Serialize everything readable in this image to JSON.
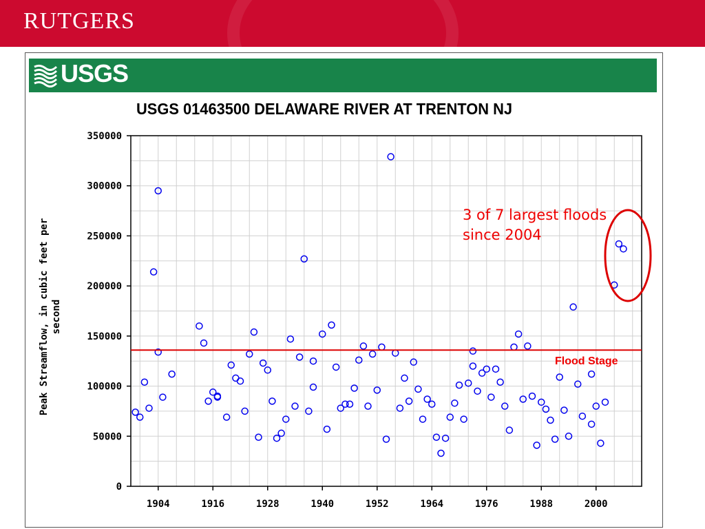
{
  "header": {
    "org_name": "RUTGERS",
    "banner_color": "#cc0a2f"
  },
  "usgs_bar": {
    "logo_text": "USGS",
    "bar_color": "#18844a"
  },
  "chart_data": {
    "type": "scatter",
    "title": "USGS 01463500 DELAWARE RIVER AT TRENTON NJ",
    "xlabel": "",
    "ylabel": "Peak Streamflow, in cubic feet per second",
    "xlim": [
      1898,
      2010
    ],
    "ylim": [
      0,
      350000
    ],
    "x_ticks": [
      1904,
      1916,
      1928,
      1940,
      1952,
      1964,
      1976,
      1988,
      2000
    ],
    "y_ticks": [
      0,
      50000,
      100000,
      150000,
      200000,
      250000,
      300000,
      350000
    ],
    "grid": true,
    "marker_color": "#0000ee",
    "series": [
      {
        "points": [
          [
            1899,
            74000
          ],
          [
            1900,
            69000
          ],
          [
            1901,
            104000
          ],
          [
            1902,
            78000
          ],
          [
            1903,
            214000
          ],
          [
            1904,
            134000
          ],
          [
            1904,
            295000
          ],
          [
            1905,
            89000
          ],
          [
            1907,
            112000
          ],
          [
            1913,
            160000
          ],
          [
            1914,
            143000
          ],
          [
            1915,
            85000
          ],
          [
            1916,
            94000
          ],
          [
            1917,
            90000
          ],
          [
            1917,
            89000
          ],
          [
            1919,
            69000
          ],
          [
            1920,
            121000
          ],
          [
            1921,
            108000
          ],
          [
            1922,
            105000
          ],
          [
            1923,
            75000
          ],
          [
            1924,
            132000
          ],
          [
            1925,
            154000
          ],
          [
            1926,
            49000
          ],
          [
            1927,
            123000
          ],
          [
            1928,
            116000
          ],
          [
            1929,
            85000
          ],
          [
            1930,
            48000
          ],
          [
            1931,
            53000
          ],
          [
            1932,
            67000
          ],
          [
            1933,
            147000
          ],
          [
            1934,
            80000
          ],
          [
            1935,
            129000
          ],
          [
            1936,
            227000
          ],
          [
            1937,
            75000
          ],
          [
            1938,
            125000
          ],
          [
            1938,
            99000
          ],
          [
            1940,
            152000
          ],
          [
            1941,
            57000
          ],
          [
            1942,
            161000
          ],
          [
            1943,
            119000
          ],
          [
            1944,
            78000
          ],
          [
            1945,
            82000
          ],
          [
            1946,
            82000
          ],
          [
            1947,
            98000
          ],
          [
            1948,
            126000
          ],
          [
            1949,
            140000
          ],
          [
            1950,
            80000
          ],
          [
            1951,
            132000
          ],
          [
            1952,
            96000
          ],
          [
            1953,
            139000
          ],
          [
            1954,
            47000
          ],
          [
            1955,
            329000
          ],
          [
            1956,
            133000
          ],
          [
            1957,
            78000
          ],
          [
            1958,
            108000
          ],
          [
            1959,
            85000
          ],
          [
            1960,
            124000
          ],
          [
            1961,
            97000
          ],
          [
            1962,
            67000
          ],
          [
            1963,
            87000
          ],
          [
            1964,
            82000
          ],
          [
            1965,
            49000
          ],
          [
            1966,
            33000
          ],
          [
            1967,
            48000
          ],
          [
            1968,
            69000
          ],
          [
            1969,
            83000
          ],
          [
            1970,
            101000
          ],
          [
            1971,
            67000
          ],
          [
            1972,
            103000
          ],
          [
            1973,
            135000
          ],
          [
            1973,
            120000
          ],
          [
            1974,
            95000
          ],
          [
            1975,
            113000
          ],
          [
            1976,
            117000
          ],
          [
            1977,
            89000
          ],
          [
            1978,
            117000
          ],
          [
            1979,
            104000
          ],
          [
            1980,
            80000
          ],
          [
            1981,
            56000
          ],
          [
            1982,
            139000
          ],
          [
            1983,
            152000
          ],
          [
            1984,
            87000
          ],
          [
            1985,
            140000
          ],
          [
            1986,
            90000
          ],
          [
            1987,
            41000
          ],
          [
            1988,
            84000
          ],
          [
            1989,
            77000
          ],
          [
            1990,
            66000
          ],
          [
            1991,
            47000
          ],
          [
            1992,
            109000
          ],
          [
            1993,
            76000
          ],
          [
            1994,
            50000
          ],
          [
            1995,
            179000
          ],
          [
            1996,
            102000
          ],
          [
            1997,
            70000
          ],
          [
            1999,
            112000
          ],
          [
            1999,
            62000
          ],
          [
            2000,
            80000
          ],
          [
            2001,
            43000
          ],
          [
            2002,
            84000
          ],
          [
            2004,
            201000
          ],
          [
            2005,
            242000
          ],
          [
            2006,
            237000
          ]
        ]
      }
    ],
    "flood_stage": {
      "value": 136000,
      "label": "Flood Stage",
      "color": "#dd0000"
    },
    "annotation": {
      "text_line1": "3 of 7 largest floods",
      "text_line2": "since 2004",
      "color": "#ee0000"
    }
  }
}
